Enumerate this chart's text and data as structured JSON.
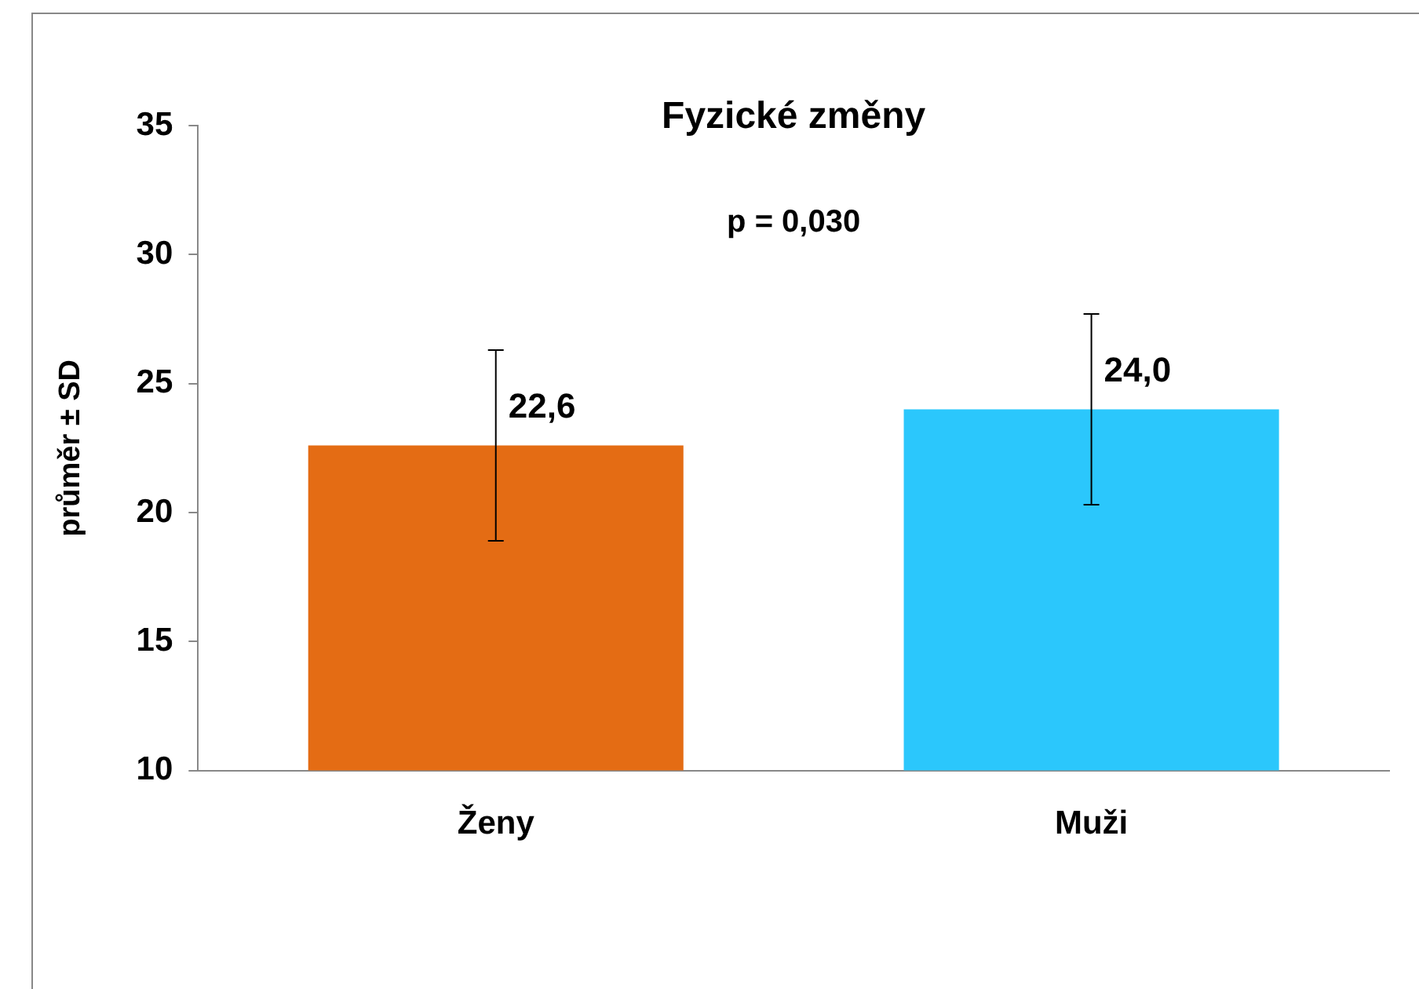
{
  "chart_data": {
    "type": "bar",
    "title": "Fyzické změny",
    "ylabel": "průměr ± SD",
    "categories": [
      "Ženy",
      "Muži"
    ],
    "values": [
      22.6,
      24.0
    ],
    "colors": [
      "#e46c14",
      "#2bc7fc"
    ],
    "errors": [
      3.7,
      3.7
    ],
    "value_labels": [
      "22,6",
      "24,0"
    ],
    "ylim": [
      10,
      35
    ],
    "yticks": [
      10,
      15,
      20,
      25,
      30,
      35
    ],
    "grid": false,
    "legend": false,
    "annotations": [
      "p = 0,030"
    ]
  }
}
